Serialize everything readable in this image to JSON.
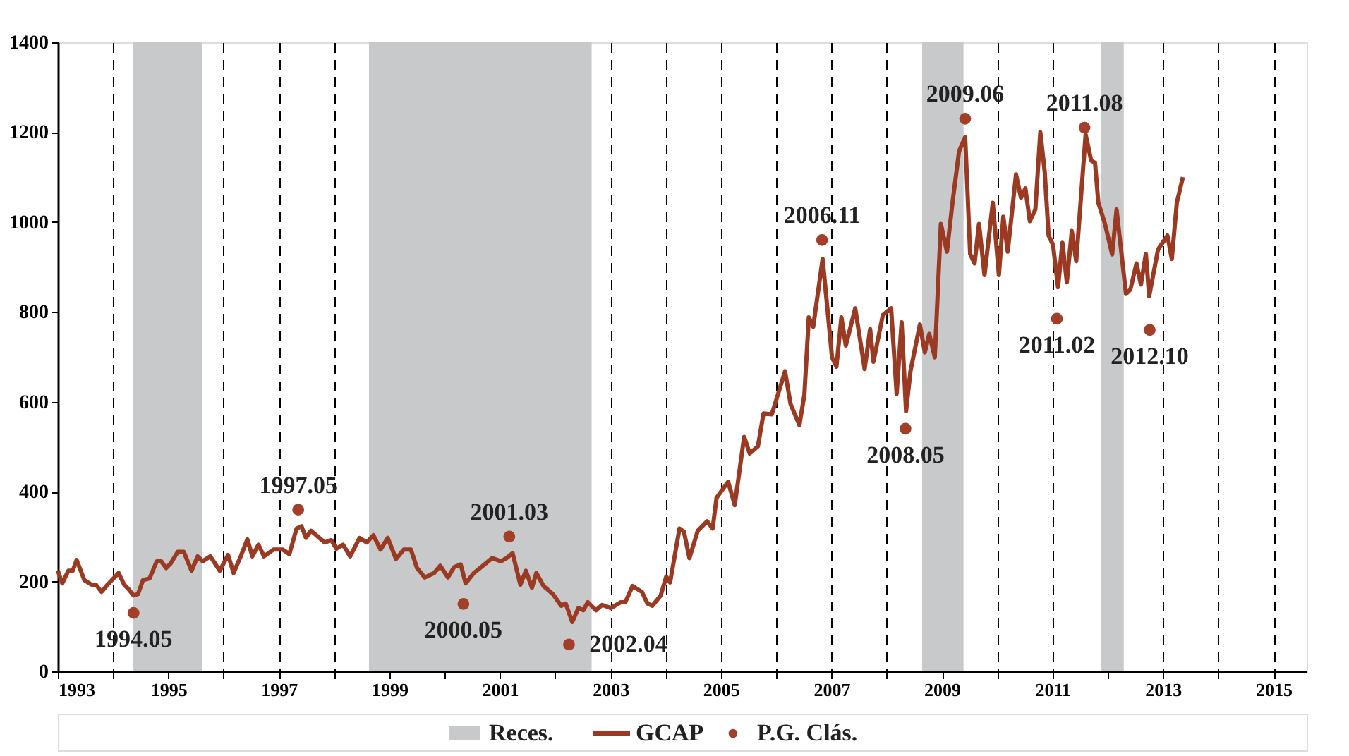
{
  "chart_data": {
    "type": "line",
    "xlim": [
      1993,
      2015.6
    ],
    "xticks": [
      1993,
      {
        "value": 1994,
        "label": null
      },
      1995,
      {
        "value": 1996,
        "label": null
      },
      1997,
      {
        "value": 1998,
        "label": null
      },
      1999,
      {
        "value": 2000,
        "label": null
      },
      2001,
      {
        "value": 2002,
        "label": null
      },
      2003,
      {
        "value": 2004,
        "label": null
      },
      2005,
      {
        "value": 2006,
        "label": null
      },
      2007,
      {
        "value": 2008,
        "label": null
      },
      2009,
      {
        "value": 2010,
        "label": null
      },
      2011,
      {
        "value": 2012,
        "label": null
      },
      2013,
      {
        "value": 2014,
        "label": null
      },
      2015
    ],
    "ylim": [
      0,
      1400
    ],
    "yticks": [
      0,
      200,
      400,
      600,
      800,
      1000,
      1200,
      1400
    ],
    "grid": "x",
    "line_style": "solid",
    "legend": "bottom",
    "bands": [
      {
        "axis": "x",
        "from": 1994.36,
        "to": 1995.61,
        "label": "Reces.",
        "color": "#c8c9cb"
      },
      {
        "axis": "x",
        "from": 1998.63,
        "to": 2002.66,
        "color": "#c8c9cb"
      },
      {
        "axis": "x",
        "from": 2008.64,
        "to": 2009.39,
        "color": "#c8c9cb"
      },
      {
        "axis": "x",
        "from": 2011.88,
        "to": 2012.29,
        "color": "#c8c9cb"
      }
    ],
    "series": [
      {
        "name": "GCAP",
        "color": "#9b3a22",
        "x": [
          1993.0,
          1993.08,
          1993.19,
          1993.27,
          1993.34,
          1993.48,
          1993.61,
          1993.69,
          1993.79,
          1993.9,
          1994.1,
          1994.2,
          1994.28,
          1994.37,
          1994.45,
          1994.54,
          1994.66,
          1994.79,
          1994.87,
          1994.96,
          1995.04,
          1995.17,
          1995.28,
          1995.42,
          1995.53,
          1995.62,
          1995.76,
          1995.93,
          1996.08,
          1996.18,
          1996.31,
          1996.43,
          1996.52,
          1996.63,
          1996.73,
          1996.9,
          1997.07,
          1997.19,
          1997.32,
          1997.41,
          1997.49,
          1997.58,
          1997.83,
          1997.95,
          1998.04,
          1998.16,
          1998.29,
          1998.46,
          1998.59,
          1998.71,
          1998.84,
          1998.97,
          1999.12,
          1999.26,
          1999.39,
          1999.5,
          1999.64,
          1999.81,
          1999.92,
          2000.06,
          2000.17,
          2000.29,
          2000.38,
          2000.53,
          2000.74,
          2000.86,
          2001.02,
          2001.12,
          2001.23,
          2001.37,
          2001.47,
          2001.58,
          2001.66,
          2001.79,
          2001.96,
          2002.11,
          2002.19,
          2002.31,
          2002.42,
          2002.51,
          2002.59,
          2002.74,
          2002.85,
          2003.01,
          2003.19,
          2003.27,
          2003.4,
          2003.57,
          2003.67,
          2003.76,
          2003.91,
          2004.01,
          2004.08,
          2004.25,
          2004.33,
          2004.43,
          2004.58,
          2004.75,
          2004.85,
          2004.92,
          2005.13,
          2005.25,
          2005.42,
          2005.52,
          2005.67,
          2005.77,
          2005.92,
          2006.16,
          2006.26,
          2006.42,
          2006.51,
          2006.59,
          2006.67,
          2006.84,
          2006.93,
          2007.01,
          2007.09,
          2007.18,
          2007.26,
          2007.43,
          2007.6,
          2007.7,
          2007.76,
          2007.93,
          2008.08,
          2008.18,
          2008.27,
          2008.35,
          2008.43,
          2008.6,
          2008.69,
          2008.77,
          2008.87,
          2008.98,
          2009.09,
          2009.19,
          2009.31,
          2009.42,
          2009.51,
          2009.59,
          2009.67,
          2009.77,
          2009.92,
          2010.03,
          2010.11,
          2010.19,
          2010.34,
          2010.43,
          2010.51,
          2010.59,
          2010.69,
          2010.78,
          2010.86,
          2010.93,
          2011.01,
          2011.1,
          2011.18,
          2011.26,
          2011.35,
          2011.43,
          2011.6,
          2011.7,
          2011.77,
          2011.83,
          2011.95,
          2012.08,
          2012.16,
          2012.33,
          2012.41,
          2012.52,
          2012.6,
          2012.69,
          2012.75,
          2012.91,
          2013.08,
          2013.16,
          2013.25,
          2013.36
        ],
        "values": [
          224,
          196,
          224,
          224,
          248,
          203,
          193,
          193,
          177,
          193,
          219,
          193,
          183,
          169,
          172,
          203,
          207,
          245,
          245,
          230,
          240,
          266,
          266,
          224,
          256,
          245,
          256,
          224,
          259,
          219,
          256,
          294,
          256,
          282,
          256,
          271,
          271,
          261,
          318,
          323,
          297,
          313,
          287,
          292,
          273,
          282,
          256,
          297,
          287,
          303,
          271,
          297,
          250,
          271,
          271,
          230,
          209,
          219,
          235,
          209,
          232,
          238,
          196,
          219,
          240,
          252,
          245,
          252,
          263,
          193,
          224,
          186,
          219,
          190,
          172,
          146,
          151,
          110,
          141,
          136,
          154,
          136,
          148,
          141,
          154,
          154,
          190,
          177,
          151,
          146,
          169,
          211,
          198,
          318,
          311,
          252,
          313,
          334,
          318,
          386,
          422,
          370,
          522,
          485,
          501,
          574,
          572,
          668,
          595,
          548,
          616,
          788,
          767,
          918,
          803,
          699,
          678,
          788,
          725,
          808,
          673,
          762,
          689,
          793,
          808,
          618,
          777,
          579,
          668,
          772,
          710,
          751,
          699,
          996,
          934,
          1043,
          1158,
          1189,
          929,
          908,
          996,
          882,
          1043,
          882,
          1012,
          934,
          1106,
          1054,
          1075,
          1002,
          1028,
          1200,
          1111,
          970,
          949,
          855,
          954,
          866,
          980,
          913,
          1195,
          1137,
          1132,
          1043,
          996,
          928,
          1028,
          840,
          850,
          908,
          861,
          929,
          835,
          939,
          970,
          918,
          1043,
          1100
        ]
      },
      {
        "name": "P.G. Clás.",
        "type": "scatter",
        "marker": "circle",
        "color": "#a23f28",
        "x": [
          1994.37,
          1997.35,
          2000.34,
          2001.17,
          2002.25,
          2006.83,
          2008.34,
          2009.42,
          2011.08,
          2011.58,
          2012.76
        ],
        "values": [
          130,
          360,
          150,
          300,
          60,
          960,
          540,
          1230,
          785,
          1210,
          760
        ]
      }
    ],
    "annotations": [
      {
        "text": "1994.05",
        "x": 1994.37,
        "y": 130
      },
      {
        "text": "1997.05",
        "x": 1997.35,
        "y": 360
      },
      {
        "text": "2000.05",
        "x": 2000.34,
        "y": 150
      },
      {
        "text": "2001.03",
        "x": 2001.17,
        "y": 300
      },
      {
        "text": "2002.04",
        "x": 2002.25,
        "y": 60
      },
      {
        "text": "2006.11",
        "x": 2006.83,
        "y": 960
      },
      {
        "text": "2008.05",
        "x": 2008.34,
        "y": 540
      },
      {
        "text": "2009.06",
        "x": 2009.42,
        "y": 1230
      },
      {
        "text": "2011.02",
        "x": 2011.08,
        "y": 785
      },
      {
        "text": "2011.08",
        "x": 2011.58,
        "y": 1210
      },
      {
        "text": "2012.10",
        "x": 2012.76,
        "y": 760
      }
    ]
  }
}
